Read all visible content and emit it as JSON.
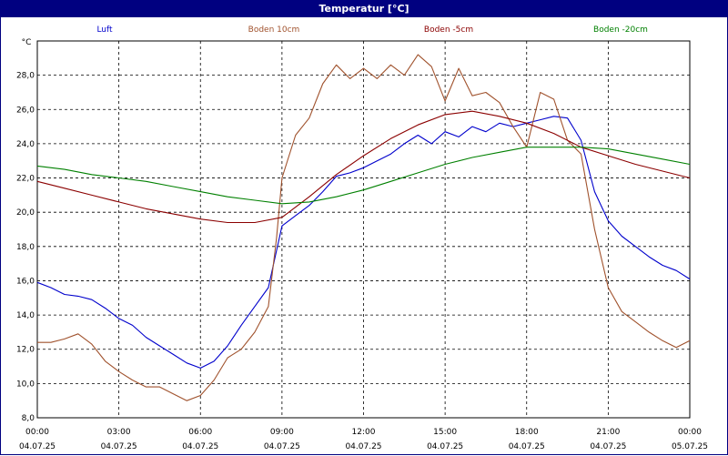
{
  "window": {
    "title": "Temperatur [°C]"
  },
  "chart_data": {
    "type": "line",
    "title": "Temperatur [°C]",
    "ylabel": "°C",
    "xlabel": "",
    "ylim": [
      8.0,
      30.0
    ],
    "xlim": [
      0,
      24
    ],
    "grid": true,
    "legend_placement": "top",
    "y_ticks": [
      "8,0",
      "10,0",
      "12,0",
      "14,0",
      "16,0",
      "18,0",
      "20,0",
      "22,0",
      "24,0",
      "26,0",
      "28,0"
    ],
    "x_ticks": [
      {
        "time": "00:00",
        "date": "04.07.25"
      },
      {
        "time": "03:00",
        "date": "04.07.25"
      },
      {
        "time": "06:00",
        "date": "04.07.25"
      },
      {
        "time": "09:00",
        "date": "04.07.25"
      },
      {
        "time": "12:00",
        "date": "04.07.25"
      },
      {
        "time": "15:00",
        "date": "04.07.25"
      },
      {
        "time": "18:00",
        "date": "04.07.25"
      },
      {
        "time": "21:00",
        "date": "04.07.25"
      },
      {
        "time": "00:00",
        "date": "05.07.25"
      }
    ],
    "series": [
      {
        "name": "Luft",
        "color": "#0000cc",
        "x": [
          0,
          0.5,
          1,
          1.5,
          2,
          2.5,
          3,
          3.5,
          4,
          4.5,
          5,
          5.5,
          6,
          6.5,
          7,
          7.5,
          8,
          8.5,
          9,
          9.5,
          10,
          10.5,
          11,
          11.5,
          12,
          12.5,
          13,
          13.5,
          14,
          14.5,
          15,
          15.5,
          16,
          16.5,
          17,
          17.5,
          18,
          18.5,
          19,
          19.5,
          20,
          20.5,
          21,
          21.5,
          22,
          22.5,
          23,
          23.5,
          24
        ],
        "y": [
          15.9,
          15.6,
          15.2,
          15.1,
          14.9,
          14.4,
          13.8,
          13.4,
          12.7,
          12.2,
          11.7,
          11.2,
          10.9,
          11.3,
          12.2,
          13.4,
          14.5,
          15.6,
          19.2,
          19.8,
          20.4,
          21.2,
          22.1,
          22.3,
          22.6,
          23.0,
          23.4,
          24.0,
          24.5,
          24.0,
          24.7,
          24.4,
          25.0,
          24.7,
          25.2,
          25.0,
          25.2,
          25.4,
          25.6,
          25.5,
          24.2,
          21.2,
          19.5,
          18.6,
          18.0,
          17.4,
          16.9,
          16.6,
          16.1
        ]
      },
      {
        "name": "Boden 10cm",
        "color": "#a0522d",
        "x": [
          0,
          0.5,
          1,
          1.5,
          2,
          2.5,
          3,
          3.5,
          4,
          4.5,
          5,
          5.5,
          6,
          6.5,
          7,
          7.5,
          8,
          8.5,
          8.8,
          9,
          9.5,
          10,
          10.5,
          11,
          11.5,
          12,
          12.5,
          13,
          13.5,
          14,
          14.5,
          15,
          15.5,
          16,
          16.5,
          17,
          17.5,
          18,
          18.5,
          19,
          19.5,
          20,
          20.5,
          21,
          21.5,
          22,
          22.5,
          23,
          23.5,
          24
        ],
        "y": [
          12.4,
          12.4,
          12.6,
          12.9,
          12.3,
          11.3,
          10.7,
          10.2,
          9.8,
          9.8,
          9.4,
          9.0,
          9.3,
          10.2,
          11.5,
          12.0,
          13.0,
          14.5,
          18.5,
          22.0,
          24.5,
          25.5,
          27.5,
          28.6,
          27.8,
          28.4,
          27.8,
          28.6,
          28.0,
          29.2,
          28.5,
          26.5,
          28.4,
          26.8,
          27.0,
          26.4,
          25.0,
          23.8,
          27.0,
          26.6,
          24.2,
          23.4,
          19.0,
          15.6,
          14.2,
          13.6,
          13.0,
          12.5,
          12.1,
          12.5
        ]
      },
      {
        "name": "Boden -5cm",
        "color": "#8b0000",
        "x": [
          0,
          1,
          2,
          3,
          4,
          5,
          6,
          7,
          8,
          9,
          10,
          11,
          12,
          13,
          14,
          15,
          16,
          17,
          18,
          19,
          20,
          21,
          22,
          23,
          24
        ],
        "y": [
          21.8,
          21.4,
          21.0,
          20.6,
          20.2,
          19.9,
          19.6,
          19.4,
          19.4,
          19.7,
          20.9,
          22.2,
          23.3,
          24.3,
          25.1,
          25.7,
          25.9,
          25.6,
          25.2,
          24.6,
          23.8,
          23.3,
          22.8,
          22.4,
          22.0
        ]
      },
      {
        "name": "Boden -20cm",
        "color": "#008000",
        "x": [
          0,
          1,
          2,
          3,
          4,
          5,
          6,
          7,
          8,
          9,
          10,
          11,
          12,
          13,
          14,
          15,
          16,
          17,
          18,
          19,
          20,
          21,
          22,
          23,
          24
        ],
        "y": [
          22.7,
          22.5,
          22.2,
          22.0,
          21.8,
          21.5,
          21.2,
          20.9,
          20.7,
          20.5,
          20.6,
          20.9,
          21.3,
          21.8,
          22.3,
          22.8,
          23.2,
          23.5,
          23.8,
          23.8,
          23.8,
          23.7,
          23.4,
          23.1,
          22.8
        ]
      }
    ]
  }
}
